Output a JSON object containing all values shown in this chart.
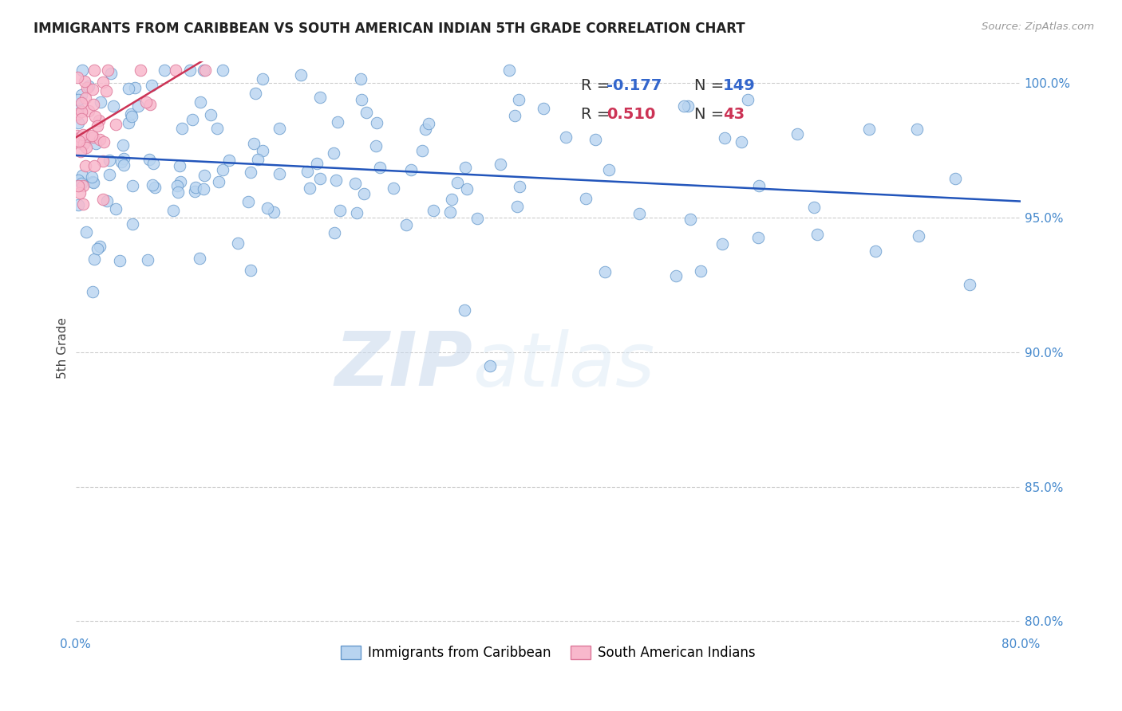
{
  "title": "IMMIGRANTS FROM CARIBBEAN VS SOUTH AMERICAN INDIAN 5TH GRADE CORRELATION CHART",
  "source": "Source: ZipAtlas.com",
  "ylabel": "5th Grade",
  "xlim": [
    0.0,
    0.8
  ],
  "ylim": [
    0.795,
    1.008
  ],
  "ytick_positions": [
    0.8,
    0.85,
    0.9,
    0.95,
    1.0
  ],
  "ytick_labels": [
    "80.0%",
    "85.0%",
    "90.0%",
    "95.0%",
    "100.0%"
  ],
  "xtick_positions": [
    0.0,
    0.2,
    0.4,
    0.6,
    0.8
  ],
  "xtick_labels": [
    "0.0%",
    "",
    "",
    "",
    "80.0%"
  ],
  "blue_R": -0.177,
  "blue_N": 149,
  "pink_R": 0.51,
  "pink_N": 43,
  "blue_color": "#b8d4f0",
  "blue_edge": "#6699cc",
  "pink_color": "#f8b8cc",
  "pink_edge": "#dd7799",
  "blue_line_color": "#2255bb",
  "pink_line_color": "#cc3355",
  "axis_tick_color": "#4488cc",
  "grid_color": "#cccccc",
  "watermark_color": "#d8e8f8",
  "title_fontsize": 12,
  "legend_R_color": "#3366cc",
  "legend_N_color": "#3366cc",
  "seed": 99
}
